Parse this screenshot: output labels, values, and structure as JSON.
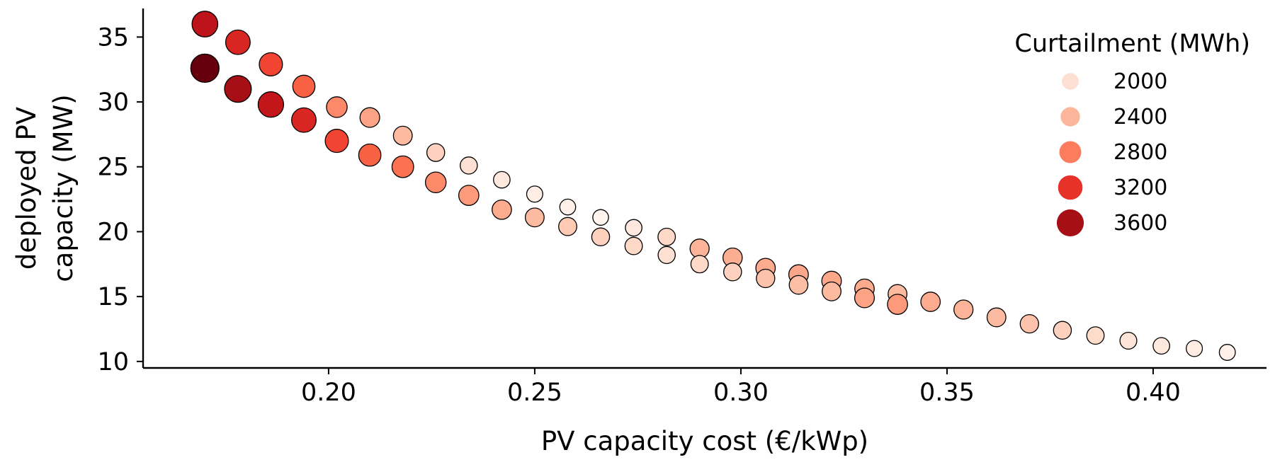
{
  "chart_data": {
    "type": "scatter",
    "xlabel": "PV capacity cost (€/kWp)",
    "ylabel": "deployed PV capacity (MW)",
    "xlim": [
      0.155,
      0.4275
    ],
    "ylim": [
      9.5,
      37.2
    ],
    "xticks": [
      0.2,
      0.25,
      0.3,
      0.35,
      0.4
    ],
    "xtick_labels": [
      "0.20",
      "0.25",
      "0.30",
      "0.35",
      "0.40"
    ],
    "yticks": [
      10,
      15,
      20,
      25,
      30,
      35
    ],
    "ytick_labels": [
      "10",
      "15",
      "20",
      "25",
      "30",
      "35"
    ],
    "grid": false,
    "colormap": {
      "name": "Reds",
      "min": 1800,
      "max": 3800,
      "stops": [
        "#fff5f0",
        "#fee0d2",
        "#fcbba1",
        "#fc9272",
        "#fb6a4a",
        "#ef3b2c",
        "#cb181d",
        "#a50f15",
        "#67000d"
      ]
    },
    "marker_edge_color": "#000000",
    "legend": {
      "title": "Curtailment (MWh)",
      "placement": "top-right",
      "entries": [
        {
          "label": "2000",
          "value": 2000,
          "color": "#fde0d2"
        },
        {
          "label": "2400",
          "value": 2400,
          "color": "#fcb69b"
        },
        {
          "label": "2800",
          "value": 2800,
          "color": "#fb7d5d"
        },
        {
          "label": "3200",
          "value": 3200,
          "color": "#e63228"
        },
        {
          "label": "3600",
          "value": 3600,
          "color": "#a50f15"
        }
      ]
    },
    "series": [
      {
        "points": [
          {
            "x": 0.17,
            "y": 36.0,
            "curtailment": 3400
          },
          {
            "x": 0.178,
            "y": 34.6,
            "curtailment": 3200
          },
          {
            "x": 0.186,
            "y": 32.9,
            "curtailment": 3000
          },
          {
            "x": 0.194,
            "y": 31.2,
            "curtailment": 2850
          },
          {
            "x": 0.202,
            "y": 29.6,
            "curtailment": 2600
          },
          {
            "x": 0.21,
            "y": 28.8,
            "curtailment": 2450
          },
          {
            "x": 0.218,
            "y": 27.4,
            "curtailment": 2300
          },
          {
            "x": 0.226,
            "y": 26.1,
            "curtailment": 2150
          },
          {
            "x": 0.234,
            "y": 25.1,
            "curtailment": 2050
          },
          {
            "x": 0.242,
            "y": 24.0,
            "curtailment": 1950
          },
          {
            "x": 0.25,
            "y": 22.9,
            "curtailment": 1880
          },
          {
            "x": 0.258,
            "y": 21.9,
            "curtailment": 1850
          },
          {
            "x": 0.266,
            "y": 21.1,
            "curtailment": 1820
          },
          {
            "x": 0.274,
            "y": 20.3,
            "curtailment": 1950
          },
          {
            "x": 0.282,
            "y": 19.6,
            "curtailment": 2100
          },
          {
            "x": 0.29,
            "y": 18.7,
            "curtailment": 2350
          },
          {
            "x": 0.298,
            "y": 18.0,
            "curtailment": 2380
          },
          {
            "x": 0.306,
            "y": 17.2,
            "curtailment": 2400
          },
          {
            "x": 0.314,
            "y": 16.7,
            "curtailment": 2420
          },
          {
            "x": 0.322,
            "y": 16.2,
            "curtailment": 2420
          },
          {
            "x": 0.33,
            "y": 15.6,
            "curtailment": 2400
          },
          {
            "x": 0.338,
            "y": 15.2,
            "curtailment": 2300
          }
        ]
      },
      {
        "points": [
          {
            "x": 0.17,
            "y": 32.6,
            "curtailment": 3800
          },
          {
            "x": 0.178,
            "y": 31.0,
            "curtailment": 3550
          },
          {
            "x": 0.186,
            "y": 29.8,
            "curtailment": 3350
          },
          {
            "x": 0.194,
            "y": 28.6,
            "curtailment": 3200
          },
          {
            "x": 0.202,
            "y": 27.0,
            "curtailment": 3000
          },
          {
            "x": 0.21,
            "y": 25.9,
            "curtailment": 2850
          },
          {
            "x": 0.218,
            "y": 25.0,
            "curtailment": 2750
          },
          {
            "x": 0.226,
            "y": 23.8,
            "curtailment": 2600
          },
          {
            "x": 0.234,
            "y": 22.8,
            "curtailment": 2500
          },
          {
            "x": 0.242,
            "y": 21.7,
            "curtailment": 2400
          },
          {
            "x": 0.25,
            "y": 21.1,
            "curtailment": 2300
          },
          {
            "x": 0.258,
            "y": 20.4,
            "curtailment": 2200
          },
          {
            "x": 0.266,
            "y": 19.6,
            "curtailment": 2150
          },
          {
            "x": 0.274,
            "y": 18.9,
            "curtailment": 2100
          },
          {
            "x": 0.282,
            "y": 18.2,
            "curtailment": 2050
          },
          {
            "x": 0.29,
            "y": 17.5,
            "curtailment": 2100
          },
          {
            "x": 0.298,
            "y": 16.9,
            "curtailment": 2150
          },
          {
            "x": 0.306,
            "y": 16.4,
            "curtailment": 2250
          },
          {
            "x": 0.314,
            "y": 15.9,
            "curtailment": 2280
          },
          {
            "x": 0.322,
            "y": 15.4,
            "curtailment": 2300
          },
          {
            "x": 0.33,
            "y": 14.9,
            "curtailment": 2450
          },
          {
            "x": 0.338,
            "y": 14.4,
            "curtailment": 2500
          },
          {
            "x": 0.346,
            "y": 14.6,
            "curtailment": 2400
          },
          {
            "x": 0.354,
            "y": 14.0,
            "curtailment": 2350
          },
          {
            "x": 0.362,
            "y": 13.4,
            "curtailment": 2300
          },
          {
            "x": 0.37,
            "y": 12.9,
            "curtailment": 2250
          },
          {
            "x": 0.378,
            "y": 12.4,
            "curtailment": 2150
          },
          {
            "x": 0.386,
            "y": 12.0,
            "curtailment": 2080
          },
          {
            "x": 0.394,
            "y": 11.6,
            "curtailment": 2000
          },
          {
            "x": 0.402,
            "y": 11.2,
            "curtailment": 1950
          },
          {
            "x": 0.41,
            "y": 11.0,
            "curtailment": 1900
          },
          {
            "x": 0.418,
            "y": 10.7,
            "curtailment": 1860
          }
        ]
      }
    ]
  }
}
